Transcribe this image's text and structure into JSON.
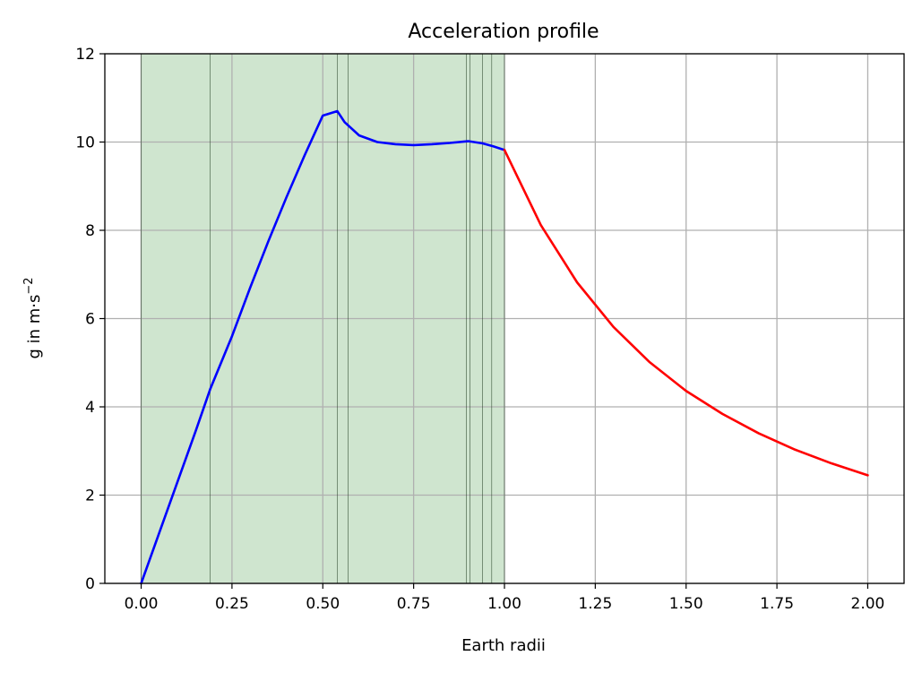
{
  "chart_data": {
    "type": "line",
    "title": "Acceleration profile",
    "xlabel": "Earth radii",
    "ylabel_base": "g in m·s",
    "ylabel_exp": "−2",
    "xlim": [
      -0.1,
      2.1
    ],
    "ylim": [
      0,
      12
    ],
    "grid": true,
    "x_ticks": [
      0.0,
      0.25,
      0.5,
      0.75,
      1.0,
      1.25,
      1.5,
      1.75,
      2.0
    ],
    "x_tick_labels": [
      "0.00",
      "0.25",
      "0.50",
      "0.75",
      "1.00",
      "1.25",
      "1.50",
      "1.75",
      "2.00"
    ],
    "y_ticks": [
      0,
      2,
      4,
      6,
      8,
      10,
      12
    ],
    "y_tick_labels": [
      "0",
      "2",
      "4",
      "6",
      "8",
      "10",
      "12"
    ],
    "shaded_region": {
      "x": [
        0.0,
        1.0
      ],
      "color": "#cfe5cf"
    },
    "layer_boundaries": [
      0.0,
      0.19,
      0.54,
      0.57,
      0.895,
      0.905,
      0.94,
      0.965,
      1.0
    ],
    "series": [
      {
        "color": "#0000ff",
        "x": [
          0.0,
          0.05,
          0.1,
          0.15,
          0.19,
          0.25,
          0.3,
          0.35,
          0.4,
          0.45,
          0.5,
          0.54,
          0.56,
          0.6,
          0.65,
          0.7,
          0.75,
          0.8,
          0.85,
          0.9,
          0.94,
          0.97,
          1.0
        ],
        "y": [
          0.0,
          1.15,
          2.3,
          3.45,
          4.4,
          5.6,
          6.7,
          7.75,
          8.75,
          9.7,
          10.6,
          10.7,
          10.45,
          10.15,
          10.0,
          9.95,
          9.93,
          9.95,
          9.98,
          10.02,
          9.97,
          9.9,
          9.82
        ]
      },
      {
        "color": "#ff0000",
        "x": [
          1.0,
          1.1,
          1.2,
          1.3,
          1.4,
          1.5,
          1.6,
          1.7,
          1.8,
          1.9,
          2.0
        ],
        "y": [
          9.82,
          8.12,
          6.82,
          5.81,
          5.01,
          4.36,
          3.84,
          3.4,
          3.03,
          2.72,
          2.45
        ]
      }
    ]
  }
}
